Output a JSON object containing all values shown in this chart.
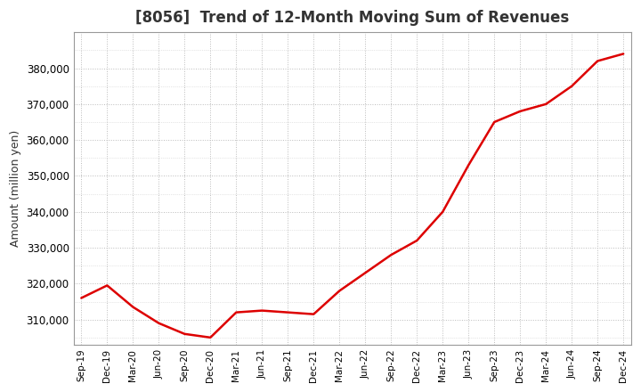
{
  "title": "[8056]  Trend of 12-Month Moving Sum of Revenues",
  "ylabel": "Amount (million yen)",
  "background_color": "#ffffff",
  "grid_color": "#bbbbbb",
  "line_color": "#dd0000",
  "x_labels": [
    "Sep-19",
    "Dec-19",
    "Mar-20",
    "Jun-20",
    "Sep-20",
    "Dec-20",
    "Mar-21",
    "Jun-21",
    "Sep-21",
    "Dec-21",
    "Mar-22",
    "Jun-22",
    "Sep-22",
    "Dec-22",
    "Mar-23",
    "Jun-23",
    "Sep-23",
    "Dec-23",
    "Mar-24",
    "Jun-24",
    "Sep-24",
    "Dec-24"
  ],
  "values": [
    316000,
    319500,
    313500,
    309000,
    306000,
    305000,
    312000,
    312500,
    312000,
    311500,
    318000,
    323000,
    328000,
    332000,
    340000,
    353000,
    365000,
    368000,
    370000,
    375000,
    382000,
    384000
  ],
  "ylim_min": 303000,
  "ylim_max": 390000,
  "ytick_values": [
    310000,
    320000,
    330000,
    340000,
    350000,
    360000,
    370000,
    380000
  ]
}
